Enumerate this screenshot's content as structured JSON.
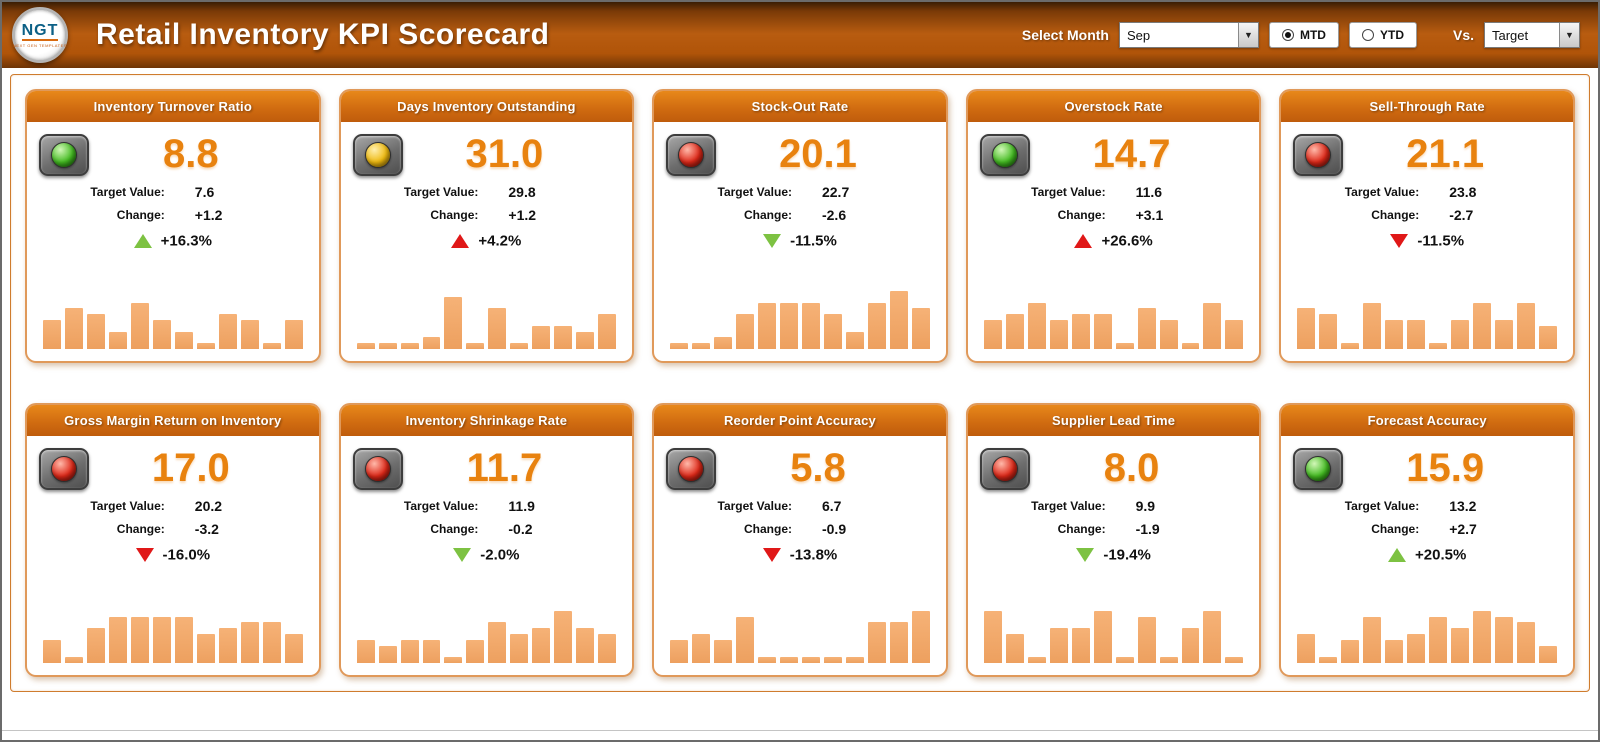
{
  "header": {
    "logo_text": "NGT",
    "logo_subtext": "NEXT GEN TEMPLATES",
    "title": "Retail Inventory KPI Scorecard",
    "select_month_label": "Select Month",
    "month_value": "Sep",
    "mtd_label": "MTD",
    "ytd_label": "YTD",
    "selected_period": "MTD",
    "vs_label": "Vs.",
    "vs_value": "Target"
  },
  "card_labels": {
    "target": "Target Value:",
    "change": "Change:"
  },
  "colors": {
    "accent": "#C55A11",
    "value_orange": "#E8820F",
    "bar": "#F2A76B",
    "trend_green": "#7DC242",
    "trend_red": "#E01818",
    "light_green": "#44BB22",
    "light_yellow": "#EEB90F",
    "light_red": "#DD2818"
  },
  "cards": [
    {
      "title": "Inventory Turnover Ratio",
      "status": "green",
      "value": "8.8",
      "target": "7.6",
      "change": "+1.2",
      "pct": "+16.3%",
      "trend": "up",
      "trend_color": "green",
      "bars": [
        5,
        7,
        6,
        3,
        8,
        5,
        3,
        1,
        6,
        5,
        1,
        5
      ]
    },
    {
      "title": "Days Inventory Outstanding",
      "status": "yellow",
      "value": "31.0",
      "target": "29.8",
      "change": "+1.2",
      "pct": "+4.2%",
      "trend": "up",
      "trend_color": "red",
      "bars": [
        1,
        1,
        1,
        2,
        9,
        1,
        7,
        1,
        4,
        4,
        3,
        6
      ]
    },
    {
      "title": "Stock-Out Rate",
      "status": "red",
      "value": "20.1",
      "target": "22.7",
      "change": "-2.6",
      "pct": "-11.5%",
      "trend": "down",
      "trend_color": "green",
      "bars": [
        1,
        1,
        2,
        6,
        8,
        8,
        8,
        6,
        3,
        8,
        10,
        7
      ]
    },
    {
      "title": "Overstock Rate",
      "status": "green",
      "value": "14.7",
      "target": "11.6",
      "change": "+3.1",
      "pct": "+26.6%",
      "trend": "up",
      "trend_color": "red",
      "bars": [
        5,
        6,
        8,
        5,
        6,
        6,
        1,
        7,
        5,
        1,
        8,
        5
      ]
    },
    {
      "title": "Sell-Through Rate",
      "status": "red",
      "value": "21.1",
      "target": "23.8",
      "change": "-2.7",
      "pct": "-11.5%",
      "trend": "down",
      "trend_color": "red",
      "bars": [
        7,
        6,
        1,
        8,
        5,
        5,
        1,
        5,
        8,
        5,
        8,
        4
      ]
    },
    {
      "title": "Gross Margin Return on Inventory",
      "status": "red",
      "value": "17.0",
      "target": "20.2",
      "change": "-3.2",
      "pct": "-16.0%",
      "trend": "down",
      "trend_color": "red",
      "bars": [
        4,
        1,
        6,
        8,
        8,
        8,
        8,
        5,
        6,
        7,
        7,
        5
      ]
    },
    {
      "title": "Inventory Shrinkage Rate",
      "status": "red",
      "value": "11.7",
      "target": "11.9",
      "change": "-0.2",
      "pct": "-2.0%",
      "trend": "down",
      "trend_color": "green",
      "bars": [
        4,
        3,
        4,
        4,
        1,
        4,
        7,
        5,
        6,
        9,
        6,
        5
      ]
    },
    {
      "title": "Reorder Point Accuracy",
      "status": "red",
      "value": "5.8",
      "target": "6.7",
      "change": "-0.9",
      "pct": "-13.8%",
      "trend": "down",
      "trend_color": "red",
      "bars": [
        4,
        5,
        4,
        8,
        1,
        1,
        1,
        1,
        1,
        7,
        7,
        9
      ]
    },
    {
      "title": "Supplier Lead Time",
      "status": "red",
      "value": "8.0",
      "target": "9.9",
      "change": "-1.9",
      "pct": "-19.4%",
      "trend": "down",
      "trend_color": "green",
      "bars": [
        9,
        5,
        1,
        6,
        6,
        9,
        1,
        8,
        1,
        6,
        9,
        1
      ]
    },
    {
      "title": "Forecast Accuracy",
      "status": "green",
      "value": "15.9",
      "target": "13.2",
      "change": "+2.7",
      "pct": "+20.5%",
      "trend": "up",
      "trend_color": "green",
      "bars": [
        5,
        1,
        4,
        8,
        4,
        5,
        8,
        6,
        9,
        8,
        7,
        3
      ]
    }
  ]
}
